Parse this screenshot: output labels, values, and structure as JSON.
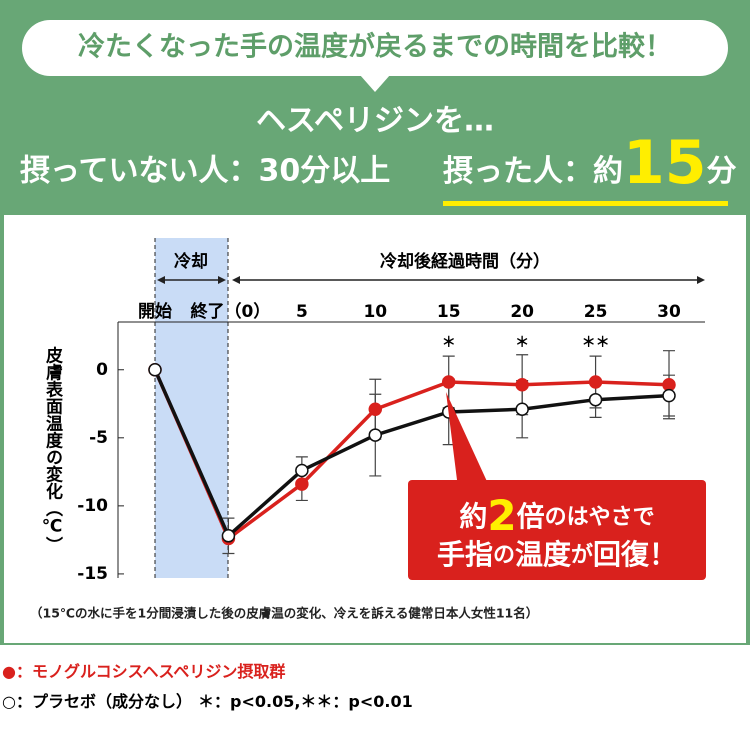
{
  "header": {
    "bubble": "冷たくなった手の温度が戻るまでの時間を比較！",
    "lead": "ヘスペリジンを…",
    "without": "摂っていない人：30分以上",
    "with_prefix": "摂った人：約",
    "with_value": "15",
    "with_unit": "分"
  },
  "chart_data": {
    "type": "line",
    "categories": [
      "開始",
      "終了（0）",
      "5",
      "10",
      "15",
      "20",
      "25",
      "30"
    ],
    "period_labels": {
      "cooling": "冷却",
      "after": "冷却後経過時間（分）"
    },
    "series": [
      {
        "name": "モノグルコシスヘスペリジン摂取群",
        "color": "#d9211d",
        "marker": "●",
        "values": [
          0,
          -12.4,
          -8.4,
          -2.9,
          -0.9,
          -1.1,
          -0.9,
          -1.1
        ],
        "errors": [
          null,
          null,
          1.2,
          2.2,
          1.9,
          2.2,
          1.9,
          2.5
        ]
      },
      {
        "name": "プラセボ（成分なし）",
        "color": "#111111",
        "marker": "○",
        "values": [
          0,
          -12.2,
          -7.4,
          -4.8,
          -3.1,
          -2.9,
          -2.2,
          -1.9
        ],
        "errors": [
          null,
          1.3,
          1.0,
          3.0,
          2.4,
          2.1,
          1.3,
          1.5
        ]
      }
    ],
    "significance": [
      null,
      null,
      null,
      null,
      "＊",
      "＊",
      "＊＊",
      null
    ],
    "ylabel": "皮膚表面温度の変化（℃）",
    "ylim": [
      -15.3,
      2.7
    ],
    "yticks": [
      0,
      -5,
      -10,
      -15
    ],
    "footnote": "（15℃の水に手を1分間浸漬した後の皮膚温の変化、冷えを訴える健常日本人女性11名）",
    "legend_separator": "：",
    "legend_note": "＊：p<0.05,＊＊：p<0.01"
  },
  "callout": {
    "line1": [
      "約",
      "2",
      "倍",
      "のはやさで"
    ],
    "line2": [
      "手指",
      "の",
      "温度",
      "が",
      "回復！"
    ]
  }
}
